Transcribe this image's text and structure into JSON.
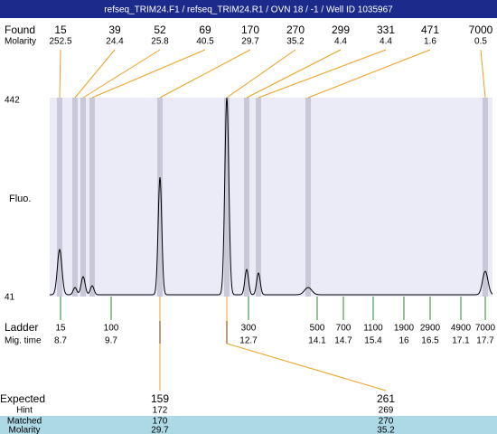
{
  "header": {
    "title": "refseq_TRIM24.F1 / refseq_TRIM24.R1 / OVN 18 / -1 / Well ID 1035967"
  },
  "found": {
    "label": "Found",
    "molarity_label": "Molarity",
    "sizes": [
      15,
      39,
      52,
      69,
      170,
      270,
      299,
      331,
      471,
      7000
    ],
    "molarity": [
      252.5,
      24.4,
      25.8,
      40.5,
      29.7,
      35.2,
      4.4,
      4.4,
      1.6,
      0.5
    ]
  },
  "plot": {
    "y_label": "Fluo.",
    "y_max": 442,
    "y_min": 41
  },
  "ladder": {
    "label": "Ladder",
    "time_label": "Mig. time",
    "sizes": [
      15,
      100,
      300,
      500,
      700,
      1100,
      1900,
      2900,
      4900,
      7000
    ],
    "times": [
      8.7,
      9.7,
      12.7,
      14.1,
      14.7,
      15.4,
      16,
      16.5,
      17.1,
      17.7
    ]
  },
  "expected": {
    "label": "Expected",
    "hint_label": "Hint",
    "matched_label": "Matched",
    "molarity_label": "Molarity",
    "sizes": [
      159,
      261
    ],
    "hint": [
      172,
      269
    ],
    "matched": [
      170,
      270
    ],
    "molarity": [
      29.7,
      35.2
    ]
  }
}
